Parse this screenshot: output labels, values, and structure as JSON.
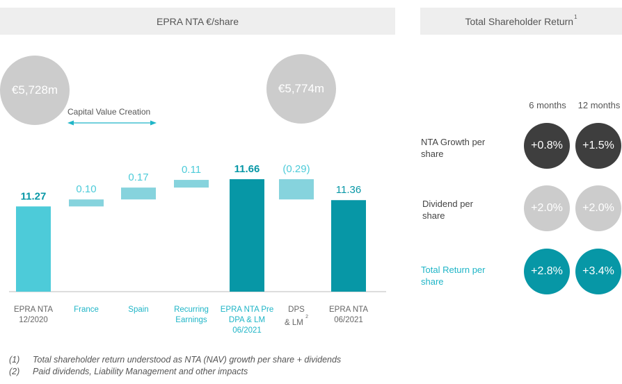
{
  "left_header": "EPRA NTA €/share",
  "right_header": {
    "title": "Total Shareholder Return",
    "footnote_mark": "1"
  },
  "nav_circles": {
    "start": "€5,728m",
    "end": "€5,774m"
  },
  "capital_value_creation_label": "Capital Value Creation",
  "colors": {
    "light_teal": "#4dcbd9",
    "pale_teal": "#86d3dd",
    "dark_teal": "#0797a6",
    "label_teal": "#1fb5c7",
    "grey": "#cccccc",
    "dark_grey": "#3e3e3e",
    "header_bg": "#eeeeee"
  },
  "chart_data": {
    "type": "bar",
    "subtype": "waterfall",
    "title": "EPRA NTA €/share",
    "categories": [
      "EPRA NTA 12/2020",
      "France",
      "Spain",
      "Recurring Earnings",
      "EPRA NTA Pre DPA & LM 06/2021",
      "DPS & LM",
      "EPRA NTA 06/2021"
    ],
    "category_label_lines": [
      [
        "EPRA NTA",
        "12/2020"
      ],
      [
        "France"
      ],
      [
        "Spain"
      ],
      [
        "Recurring",
        "Earnings"
      ],
      [
        "EPRA NTA Pre",
        "DPA & LM",
        "06/2021"
      ],
      [
        "DPS",
        "& LM"
      ],
      [
        "EPRA NTA",
        "06/2021"
      ]
    ],
    "category_superscripts": [
      "",
      "",
      "",
      "",
      "",
      "2",
      ""
    ],
    "values": [
      11.27,
      0.1,
      0.17,
      0.11,
      11.66,
      -0.29,
      11.36
    ],
    "data_labels": [
      "11.27",
      "0.10",
      "0.17",
      "0.11",
      "11.66",
      "(0.29)",
      "11.36"
    ],
    "kinds": [
      "total",
      "delta",
      "delta",
      "delta",
      "total",
      "delta",
      "total"
    ],
    "ylim": [
      10.05,
      11.75
    ],
    "xlabel": "",
    "ylabel": ""
  },
  "tsr": {
    "columns": [
      "6 months",
      "12 months"
    ],
    "rows": [
      {
        "label_lines": [
          "NTA Growth per",
          "share"
        ],
        "values": [
          "+0.8%",
          "+1.5%"
        ],
        "color": "#3e3e3e"
      },
      {
        "label_lines": [
          "Dividend per",
          "share"
        ],
        "values": [
          "+2.0%",
          "+2.0%"
        ],
        "color": "#cccccc"
      },
      {
        "label_lines": [
          "Total Return per",
          "share"
        ],
        "values": [
          "+2.8%",
          "+3.4%"
        ],
        "color": "#0797a6"
      }
    ]
  },
  "footnotes": [
    {
      "num": "(1)",
      "text": "Total shareholder return understood as NTA (NAV) growth per share + dividends"
    },
    {
      "num": "(2)",
      "text": "Paid dividends, Liability Management and other impacts"
    }
  ]
}
